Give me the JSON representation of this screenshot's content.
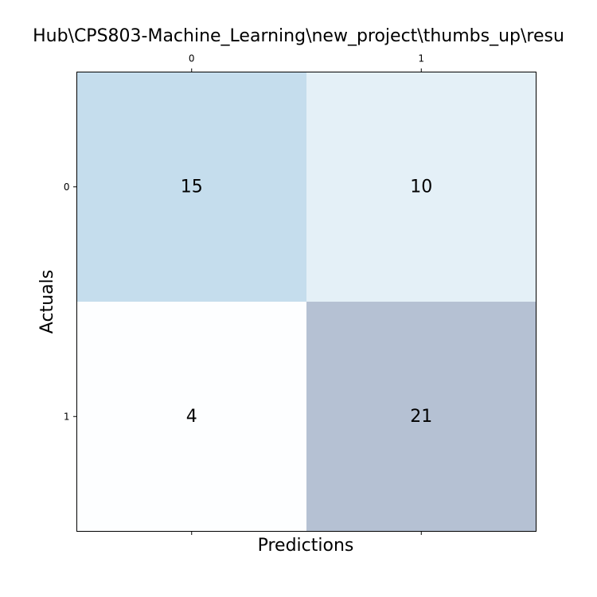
{
  "chart_data": {
    "type": "heatmap",
    "title": "Hub\\CPS803-Machine_Learning\\new_project\\thumbs_up\\resu",
    "xlabel": "Predictions",
    "ylabel": "Actuals",
    "x_ticks": [
      "0",
      "1"
    ],
    "y_ticks": [
      "0",
      "1"
    ],
    "x_tick_position": "top",
    "matrix": [
      [
        15,
        10
      ],
      [
        4,
        21
      ]
    ],
    "cell_text_color": "#000000",
    "colormap": "Blues",
    "cell_alpha": 0.3,
    "grid": false
  }
}
